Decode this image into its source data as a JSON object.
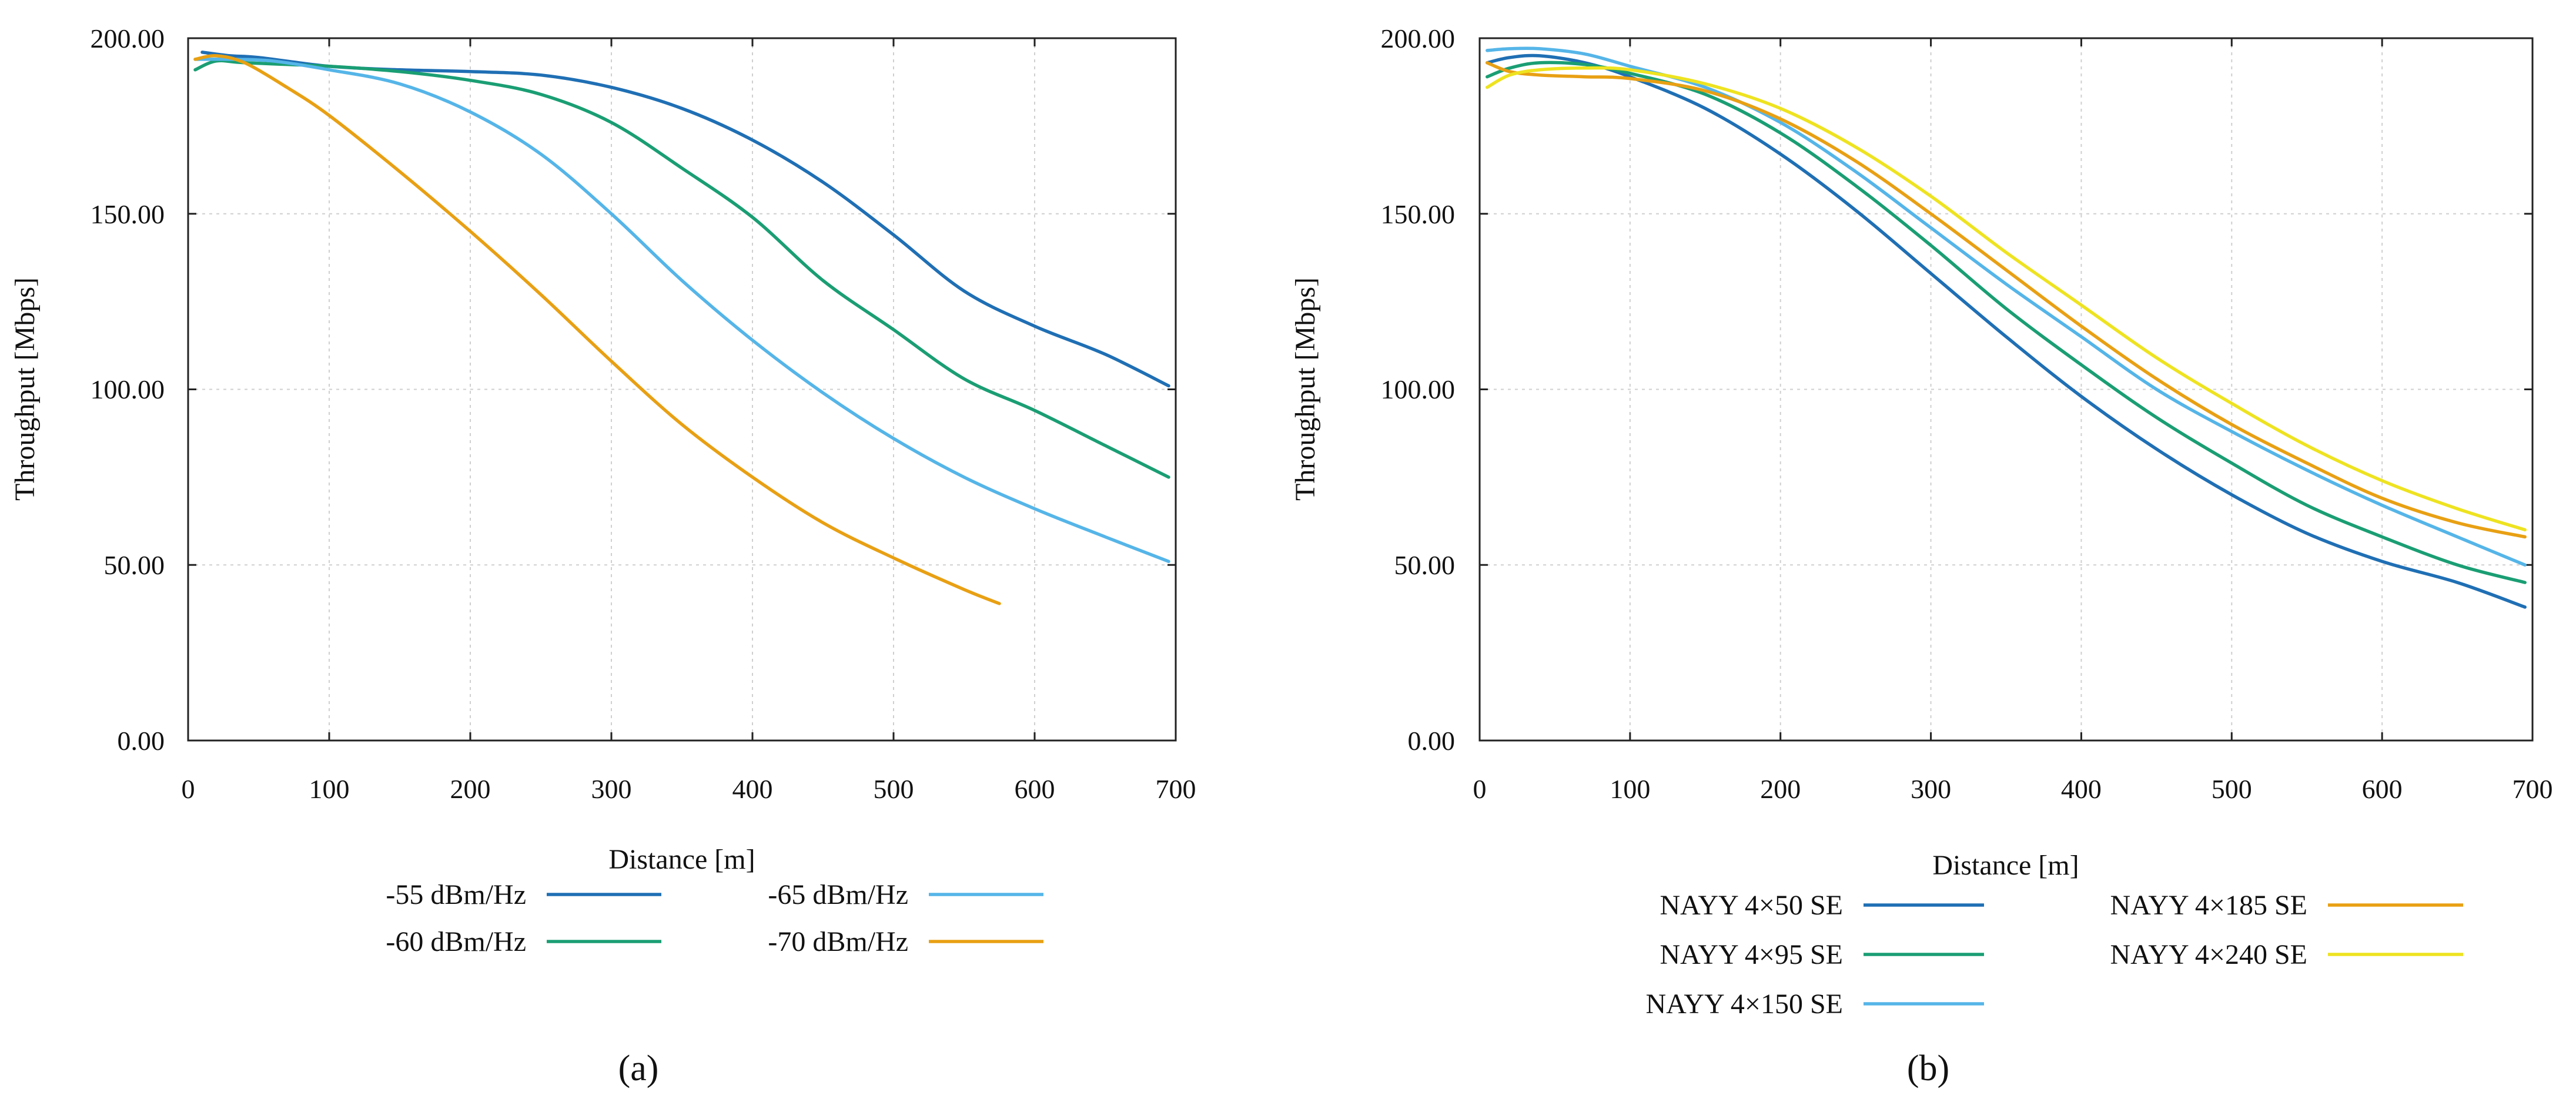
{
  "chart_data": [
    {
      "type": "line",
      "panel_label": "(a)",
      "xlabel": "Distance [m]",
      "ylabel": "Throughput [Mbps]",
      "xlim": [
        0,
        700
      ],
      "ylim": [
        0,
        200
      ],
      "xticks": [
        "0",
        "100",
        "200",
        "300",
        "400",
        "500",
        "600",
        "700"
      ],
      "yticks": [
        "0.00",
        "50.00",
        "100.00",
        "150.00",
        "200.00"
      ],
      "grid": true,
      "legend_position": "bottom",
      "series": [
        {
          "name": "-55 dBm/Hz",
          "color": "#1f6fb4",
          "x": [
            10,
            30,
            50,
            100,
            150,
            200,
            250,
            300,
            350,
            400,
            450,
            500,
            550,
            600,
            650,
            695
          ],
          "y": [
            196,
            195,
            194.5,
            192,
            191,
            190.5,
            189.5,
            186,
            180,
            171,
            159,
            144,
            128,
            118,
            110,
            101
          ]
        },
        {
          "name": "-60 dBm/Hz",
          "color": "#1a9e73",
          "x": [
            5,
            20,
            40,
            100,
            150,
            200,
            250,
            300,
            350,
            400,
            450,
            500,
            550,
            600,
            650,
            695
          ],
          "y": [
            191,
            193.5,
            193,
            192,
            190.5,
            188,
            184,
            176,
            163,
            149,
            131,
            117,
            103,
            94,
            84,
            75
          ]
        },
        {
          "name": "-65 dBm/Hz",
          "color": "#55b5e8",
          "x": [
            5,
            30,
            60,
            100,
            150,
            200,
            250,
            300,
            350,
            400,
            450,
            500,
            550,
            600,
            650,
            695
          ],
          "y": [
            194,
            194,
            193.5,
            191,
            187,
            179,
            167,
            150,
            131,
            114,
            99,
            86,
            75,
            66,
            58,
            51
          ]
        },
        {
          "name": "-70 dBm/Hz",
          "color": "#e8a013",
          "x": [
            5,
            20,
            40,
            70,
            100,
            150,
            200,
            250,
            300,
            350,
            400,
            450,
            500,
            550,
            575
          ],
          "y": [
            194,
            195,
            193,
            186,
            178,
            162,
            145,
            127,
            108,
            90,
            75,
            62,
            52,
            43,
            39
          ]
        }
      ]
    },
    {
      "type": "line",
      "panel_label": "(b)",
      "xlabel": "Distance [m]",
      "ylabel": "Throughput [Mbps]",
      "xlim": [
        0,
        700
      ],
      "ylim": [
        0,
        200
      ],
      "xticks": [
        "0",
        "100",
        "200",
        "300",
        "400",
        "500",
        "600",
        "700"
      ],
      "yticks": [
        "0.00",
        "50.00",
        "100.00",
        "150.00",
        "200.00"
      ],
      "grid": true,
      "legend_position": "bottom",
      "series": [
        {
          "name": "NAYY 4×50 SE",
          "color": "#1f6fb4",
          "x": [
            5,
            20,
            40,
            70,
            100,
            150,
            200,
            250,
            300,
            350,
            400,
            450,
            500,
            550,
            600,
            650,
            695
          ],
          "y": [
            193,
            194.5,
            195,
            193,
            189,
            180,
            167,
            151,
            133,
            115,
            98,
            83,
            70,
            59,
            51,
            45,
            38
          ]
        },
        {
          "name": "NAYY 4×95 SE",
          "color": "#1a9e73",
          "x": [
            5,
            20,
            40,
            70,
            100,
            150,
            200,
            250,
            300,
            350,
            400,
            450,
            500,
            550,
            600,
            650,
            695
          ],
          "y": [
            189,
            191.5,
            193,
            192.5,
            190,
            184,
            173,
            158,
            141,
            123,
            107,
            92,
            79,
            67,
            58,
            50,
            45
          ]
        },
        {
          "name": "NAYY 4×150 SE",
          "color": "#55b5e8",
          "x": [
            5,
            20,
            40,
            70,
            100,
            150,
            200,
            250,
            300,
            350,
            400,
            450,
            500,
            550,
            600,
            650,
            695
          ],
          "y": [
            196.5,
            197,
            197,
            195.5,
            192,
            186,
            176,
            162,
            146,
            130,
            115,
            100,
            88,
            77,
            67,
            58,
            50
          ]
        },
        {
          "name": "NAYY 4×185 SE",
          "color": "#e8a013",
          "x": [
            5,
            20,
            40,
            70,
            100,
            150,
            200,
            250,
            300,
            350,
            400,
            450,
            500,
            550,
            600,
            650,
            695
          ],
          "y": [
            193,
            190.5,
            189.5,
            189,
            188.5,
            185,
            177,
            165,
            150,
            134,
            118,
            103,
            90,
            79,
            69,
            62,
            58
          ]
        },
        {
          "name": "NAYY 4×240 SE",
          "color": "#eee320",
          "x": [
            5,
            20,
            40,
            70,
            100,
            150,
            200,
            250,
            300,
            350,
            400,
            450,
            500,
            550,
            600,
            650,
            695
          ],
          "y": [
            186,
            189.5,
            191,
            191.5,
            191,
            187,
            180,
            169,
            155,
            139,
            124,
            109,
            96,
            84,
            74,
            66,
            60
          ]
        }
      ]
    }
  ]
}
